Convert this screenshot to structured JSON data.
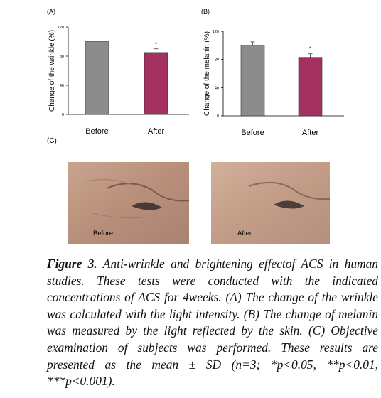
{
  "chart_data": [
    {
      "type": "bar",
      "panel": "(A)",
      "ylabel": "Change of the wrinkle (%)",
      "categories": [
        "Before",
        "After"
      ],
      "values": [
        100,
        85
      ],
      "errors": [
        5,
        5
      ],
      "colors": [
        "#8c8c8c",
        "#a3305f"
      ],
      "value_annotations": [
        null,
        "*"
      ],
      "ylim": [
        0,
        120
      ],
      "yticks": [
        0,
        40,
        80,
        120
      ]
    },
    {
      "type": "bar",
      "panel": "(B)",
      "ylabel": "Change of the melanin (%)",
      "categories": [
        "Before",
        "After"
      ],
      "values": [
        100,
        83
      ],
      "errors": [
        5,
        5
      ],
      "colors": [
        "#8c8c8c",
        "#a3305f"
      ],
      "value_annotations": [
        null,
        "*"
      ],
      "ylim": [
        0,
        120
      ],
      "yticks": [
        0,
        40,
        80,
        120
      ]
    }
  ],
  "photos": {
    "panel": "(C)",
    "labels": [
      "Before",
      "After"
    ]
  },
  "caption": {
    "label": "Figure 3.",
    "text": "Anti-wrinkle and brightening effectof ACS in human studies. These tests were conducted with the indicated concentrations of ACS for 4weeks. (A) The change of the wrinkle was calculated with the light intensity. (B) The change of melanin was measured by the light reflected by the skin. (C) Objective examination of subjects was performed. These results are presented as the mean ± SD (n=3; *p<0.05, **p<0.01, ***p<0.001)."
  }
}
